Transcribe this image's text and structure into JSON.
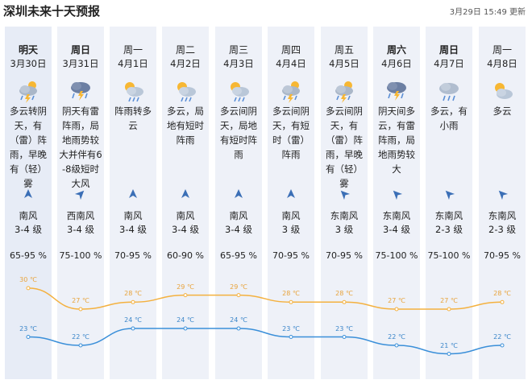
{
  "header": {
    "title": "深圳未来十天预报",
    "update_time": "3月29日 15:49 更新"
  },
  "days": [
    {
      "name": "明天",
      "bold": true,
      "date": "3月30日",
      "icon": "cloudy-thunder-rain-icon",
      "desc": "多云转阴天，有（雷）阵雨，早晚有（轻）雾",
      "wind_dir": "南风",
      "wind_level": "3-4 级",
      "wind_rotate": 0,
      "humidity": "65-95 %",
      "high": "30 ℃",
      "low": "23 ℃"
    },
    {
      "name": "周日",
      "bold": true,
      "date": "3月31日",
      "icon": "thunderstorm-icon",
      "desc": "阴天有雷阵雨，局地雨势较大并伴有6-8级短时大风",
      "wind_dir": "西南风",
      "wind_level": "3-4 级",
      "wind_rotate": 45,
      "humidity": "75-100 %",
      "high": "27 ℃",
      "low": "22 ℃"
    },
    {
      "name": "周一",
      "bold": false,
      "date": "4月1日",
      "icon": "sun-cloud-rain-icon",
      "desc": "阵雨转多云",
      "wind_dir": "南风",
      "wind_level": "3-4 级",
      "wind_rotate": 0,
      "humidity": "70-95 %",
      "high": "28 ℃",
      "low": "24 ℃"
    },
    {
      "name": "周二",
      "bold": false,
      "date": "4月2日",
      "icon": "sun-cloud-rain-icon",
      "desc": "多云，局地有短时阵雨",
      "wind_dir": "南风",
      "wind_level": "3-4 级",
      "wind_rotate": 0,
      "humidity": "60-90 %",
      "high": "29 ℃",
      "low": "24 ℃"
    },
    {
      "name": "周三",
      "bold": false,
      "date": "4月3日",
      "icon": "sun-cloud-rain-icon",
      "desc": "多云间阴天，局地有短时阵雨",
      "wind_dir": "南风",
      "wind_level": "3-4 级",
      "wind_rotate": 0,
      "humidity": "65-95 %",
      "high": "29 ℃",
      "low": "24 ℃"
    },
    {
      "name": "周四",
      "bold": false,
      "date": "4月4日",
      "icon": "cloudy-thunder-rain-icon",
      "desc": "多云间阴天，有短时（雷）阵雨",
      "wind_dir": "南风",
      "wind_level": "3 级",
      "wind_rotate": 0,
      "humidity": "70-95 %",
      "high": "28 ℃",
      "low": "23 ℃"
    },
    {
      "name": "周五",
      "bold": false,
      "date": "4月5日",
      "icon": "cloudy-thunder-rain-icon",
      "desc": "多云间阴天，有（雷）阵雨，早晚有（轻）雾",
      "wind_dir": "东南风",
      "wind_level": "3 级",
      "wind_rotate": -45,
      "humidity": "70-95 %",
      "high": "28 ℃",
      "low": "23 ℃"
    },
    {
      "name": "周六",
      "bold": true,
      "date": "4月6日",
      "icon": "thunderstorm-icon",
      "desc": "阴天间多云，有雷阵雨，局地雨势较大",
      "wind_dir": "东南风",
      "wind_level": "3-4 级",
      "wind_rotate": -45,
      "humidity": "75-100 %",
      "high": "27 ℃",
      "low": "22 ℃"
    },
    {
      "name": "周日",
      "bold": true,
      "date": "4月7日",
      "icon": "cloud-rain-icon",
      "desc": "多云，有小雨",
      "wind_dir": "东南风",
      "wind_level": "2-3 级",
      "wind_rotate": -45,
      "humidity": "75-100 %",
      "high": "27 ℃",
      "low": "21 ℃"
    },
    {
      "name": "周一",
      "bold": false,
      "date": "4月8日",
      "icon": "sun-cloud-icon",
      "desc": "多云",
      "wind_dir": "东南风",
      "wind_level": "2-3 级",
      "wind_rotate": -45,
      "humidity": "70-95 %",
      "high": "28 ℃",
      "low": "22 ℃"
    }
  ],
  "chart_data": {
    "type": "line",
    "categories": [
      "3月30日",
      "3月31日",
      "4月1日",
      "4月2日",
      "4月3日",
      "4月4日",
      "4月5日",
      "4月6日",
      "4月7日",
      "4月8日"
    ],
    "series": [
      {
        "values": [
          30,
          27,
          28,
          29,
          29,
          28,
          28,
          27,
          27,
          28
        ],
        "color": "#f4b13f"
      },
      {
        "values": [
          23,
          22,
          24,
          24,
          24,
          23,
          23,
          22,
          21,
          22
        ],
        "color": "#3a8fd9"
      }
    ]
  },
  "colors": {
    "high_line": "#f4b13f",
    "low_line": "#3a8fd9",
    "wind_arrow": "#3b6fb6",
    "column_bg": "#eef1f8"
  }
}
